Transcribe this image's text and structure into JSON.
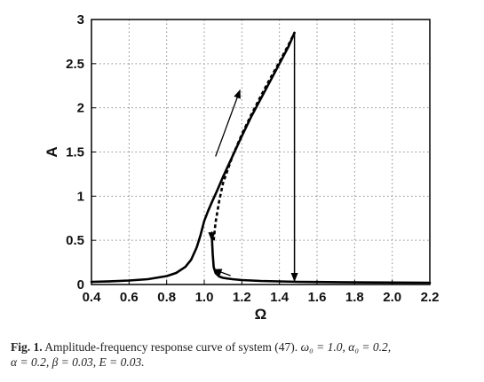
{
  "chart_data": {
    "type": "line",
    "xlabel": "Ω",
    "ylabel": "A",
    "xlim": [
      0.4,
      2.2
    ],
    "ylim": [
      0,
      3
    ],
    "xticks": [
      "0.4",
      "0.6",
      "0.8",
      "1.0",
      "1.2",
      "1.4",
      "1.6",
      "1.8",
      "2.0",
      "2.2"
    ],
    "yticks": [
      "0",
      "0.5",
      "1",
      "1.5",
      "2",
      "2.5",
      "3"
    ],
    "grid": true,
    "legend": "none",
    "series": [
      {
        "style": "solid",
        "x": [
          0.4,
          0.5,
          0.6,
          0.7,
          0.8,
          0.85,
          0.9,
          0.93,
          0.96,
          0.98,
          1.0,
          1.02,
          1.04,
          1.07,
          1.1,
          1.15,
          1.2,
          1.25,
          1.3,
          1.35,
          1.4,
          1.45,
          1.48
        ],
        "y": [
          0.03,
          0.036,
          0.045,
          0.06,
          0.095,
          0.13,
          0.2,
          0.28,
          0.42,
          0.56,
          0.72,
          0.83,
          0.93,
          1.07,
          1.22,
          1.45,
          1.68,
          1.9,
          2.1,
          2.3,
          2.5,
          2.7,
          2.85
        ]
      },
      {
        "style": "dashed",
        "x": [
          1.05,
          1.06,
          1.08,
          1.1,
          1.15,
          1.2,
          1.25,
          1.3,
          1.35,
          1.4,
          1.45,
          1.48
        ],
        "y": [
          0.5,
          0.7,
          0.95,
          1.15,
          1.45,
          1.7,
          1.92,
          2.13,
          2.33,
          2.52,
          2.72,
          2.85
        ]
      },
      {
        "style": "solid",
        "x": [
          1.04,
          1.045,
          1.05,
          1.06,
          1.08,
          1.1,
          1.15,
          1.2,
          1.3,
          1.4,
          1.5,
          1.6,
          1.8,
          2.0,
          2.2
        ],
        "y": [
          0.55,
          0.35,
          0.2,
          0.13,
          0.09,
          0.075,
          0.06,
          0.05,
          0.04,
          0.035,
          0.03,
          0.028,
          0.024,
          0.022,
          0.02
        ]
      }
    ],
    "jump": {
      "x": 1.48,
      "y_from": 2.85,
      "y_to": 0.03
    },
    "annotations": [
      {
        "type": "arrow",
        "from": [
          1.06,
          1.45
        ],
        "to": [
          1.19,
          2.2
        ]
      },
      {
        "type": "arrow",
        "from": [
          1.14,
          0.1
        ],
        "to": [
          1.05,
          0.17
        ]
      },
      {
        "type": "arrow",
        "from": [
          1.04,
          0.6
        ],
        "to": [
          1.04,
          0.5
        ]
      }
    ]
  },
  "caption": {
    "fig_label": "Fig. 1.",
    "text": "Amplitude-frequency response curve of system (47).",
    "params_line1": "ω₀ = 1.0, α₀ = 0.2,",
    "params_line2": "α = 0.2, β = 0.03, E = 0.03."
  }
}
